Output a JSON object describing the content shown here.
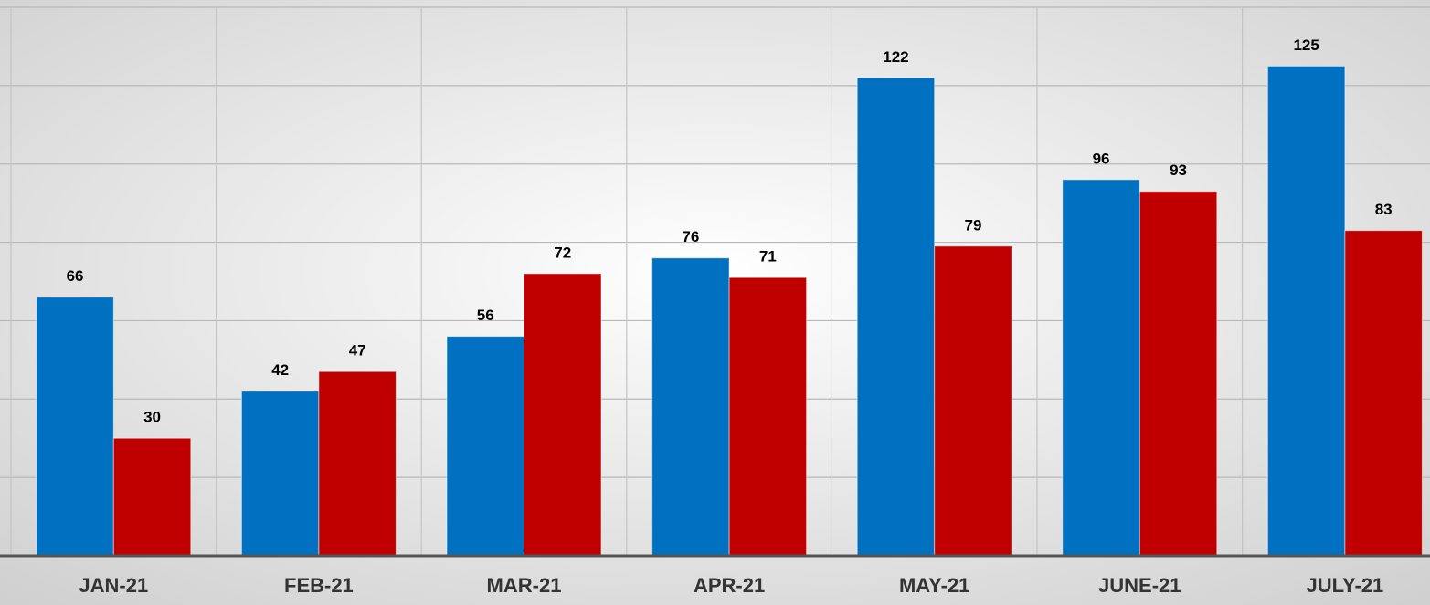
{
  "chart_data": {
    "type": "bar",
    "categories": [
      "JAN-21",
      "FEB-21",
      "MAR-21",
      "APR-21",
      "MAY-21",
      "JUNE-21",
      "JULY-21"
    ],
    "series": [
      {
        "color": "#0070c0",
        "values": [
          66,
          42,
          56,
          76,
          122,
          96,
          125
        ]
      },
      {
        "color": "#c00000",
        "values": [
          30,
          47,
          72,
          71,
          79,
          93,
          83
        ]
      }
    ],
    "ylim": [
      0,
      140
    ],
    "yticks": [
      0,
      20,
      40,
      60,
      80,
      100,
      120,
      140
    ],
    "grid": true
  }
}
